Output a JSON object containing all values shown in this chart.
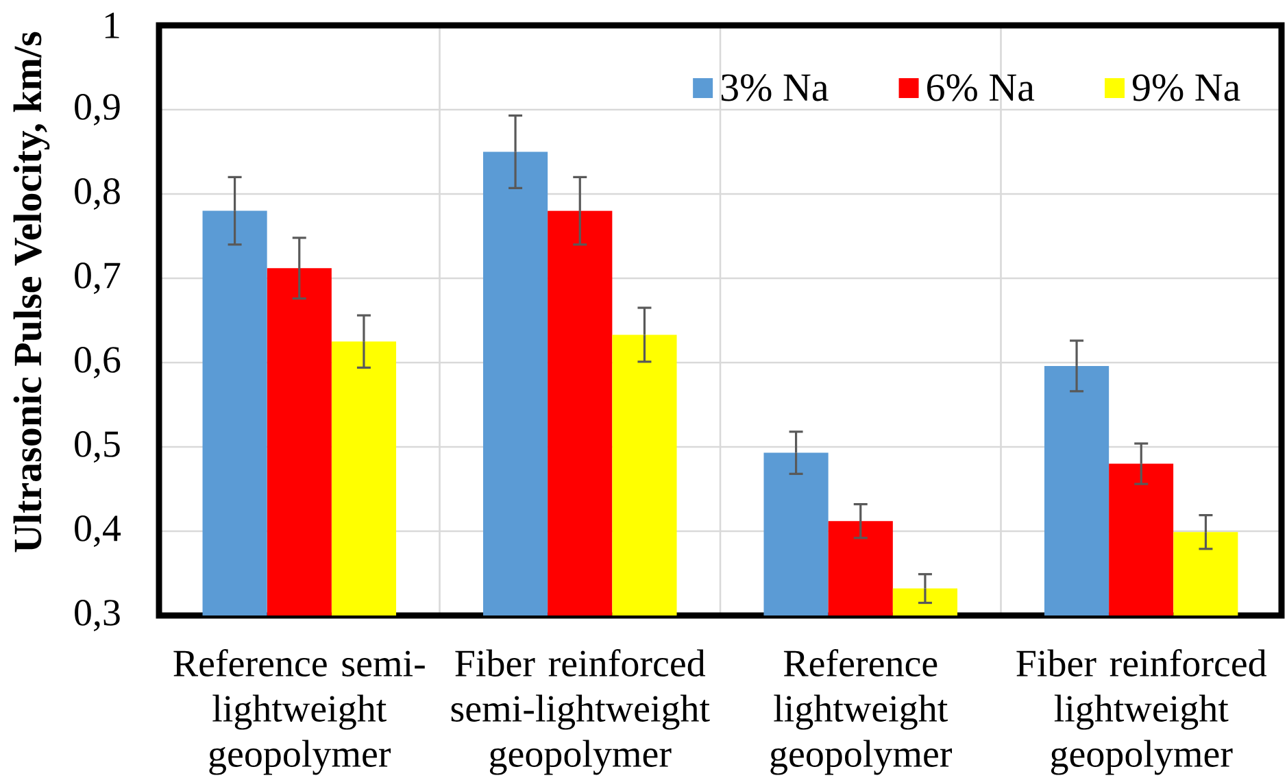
{
  "chart_data": {
    "type": "bar",
    "ylabel": "Ultrasonic Pulse Velocity, km/s",
    "categories": [
      "Reference semi-lightweight geopolymer",
      "Fiber reinforced semi-lightweight geopolymer",
      "Reference lightweight geopolymer",
      "Fiber reinforced lightweight geopolymer"
    ],
    "series": [
      {
        "name": "3% Na",
        "color": "#5b9bd5",
        "values": [
          0.78,
          0.85,
          0.493,
          0.596
        ],
        "errors": [
          0.04,
          0.043,
          0.025,
          0.03
        ]
      },
      {
        "name": "6% Na",
        "color": "#ff0000",
        "values": [
          0.712,
          0.78,
          0.412,
          0.48
        ],
        "errors": [
          0.036,
          0.04,
          0.02,
          0.024
        ]
      },
      {
        "name": "9% Na",
        "color": "#ffff00",
        "values": [
          0.625,
          0.633,
          0.332,
          0.399
        ],
        "errors": [
          0.031,
          0.032,
          0.017,
          0.02
        ]
      }
    ],
    "ylim": [
      0.3,
      1
    ],
    "yticks": [
      {
        "value": 0.3,
        "label": "0,3"
      },
      {
        "value": 0.4,
        "label": "0,4"
      },
      {
        "value": 0.5,
        "label": "0,5"
      },
      {
        "value": 0.6,
        "label": "0,6"
      },
      {
        "value": 0.7,
        "label": "0,7"
      },
      {
        "value": 0.8,
        "label": "0,8"
      },
      {
        "value": 0.9,
        "label": "0,9"
      },
      1
    ],
    "grid": true,
    "legend": "top right"
  }
}
